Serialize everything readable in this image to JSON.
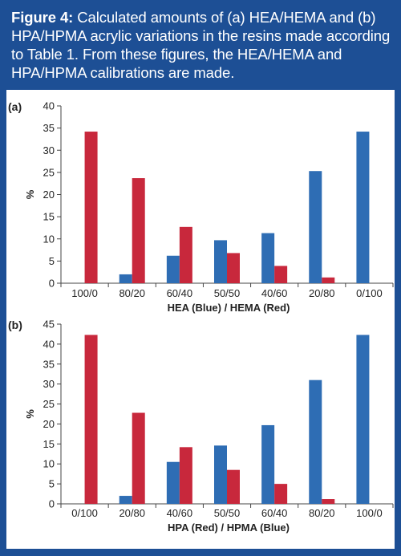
{
  "figure": {
    "label": "Figure 4:",
    "caption": "Calculated amounts of (a) HEA/HEMA and (b) HPA/HPMA acrylic variations in the resins made according to Table 1. From these figures, the HEA/HEMA and HPA/HPMA calibrations are made."
  },
  "colors": {
    "background": "#1d4f95",
    "blue": "#2e6db4",
    "red": "#c8283c"
  },
  "chart_data": [
    {
      "type": "bar",
      "panel_label": "(a)",
      "categories": [
        "100/0",
        "80/20",
        "60/40",
        "50/50",
        "40/60",
        "20/80",
        "0/100"
      ],
      "series": [
        {
          "color": "blue",
          "values": [
            0,
            2,
            6.2,
            9.7,
            11.3,
            25.3,
            34.2
          ]
        },
        {
          "color": "red",
          "values": [
            34.2,
            23.7,
            12.7,
            6.8,
            3.9,
            1.3,
            0
          ]
        }
      ],
      "xlabel": "HEA (Blue) / HEMA (Red)",
      "ylabel": "%",
      "ylim": [
        0,
        40
      ],
      "yticks": [
        0,
        5,
        10,
        15,
        20,
        25,
        30,
        35,
        40
      ],
      "grid": false
    },
    {
      "type": "bar",
      "panel_label": "(b)",
      "categories": [
        "0/100",
        "20/80",
        "40/60",
        "50/50",
        "60/40",
        "80/20",
        "100/0"
      ],
      "series": [
        {
          "color": "blue",
          "values": [
            0,
            2,
            10.5,
            14.6,
            19.7,
            31,
            42.3
          ]
        },
        {
          "color": "red",
          "values": [
            42.3,
            22.8,
            14.2,
            8.5,
            5,
            1.2,
            0
          ]
        }
      ],
      "xlabel": "HPA (Red) / HPMA (Blue)",
      "ylabel": "%",
      "ylim": [
        0,
        45
      ],
      "yticks": [
        0,
        5,
        10,
        15,
        20,
        25,
        30,
        35,
        40,
        45
      ],
      "grid": false
    }
  ]
}
